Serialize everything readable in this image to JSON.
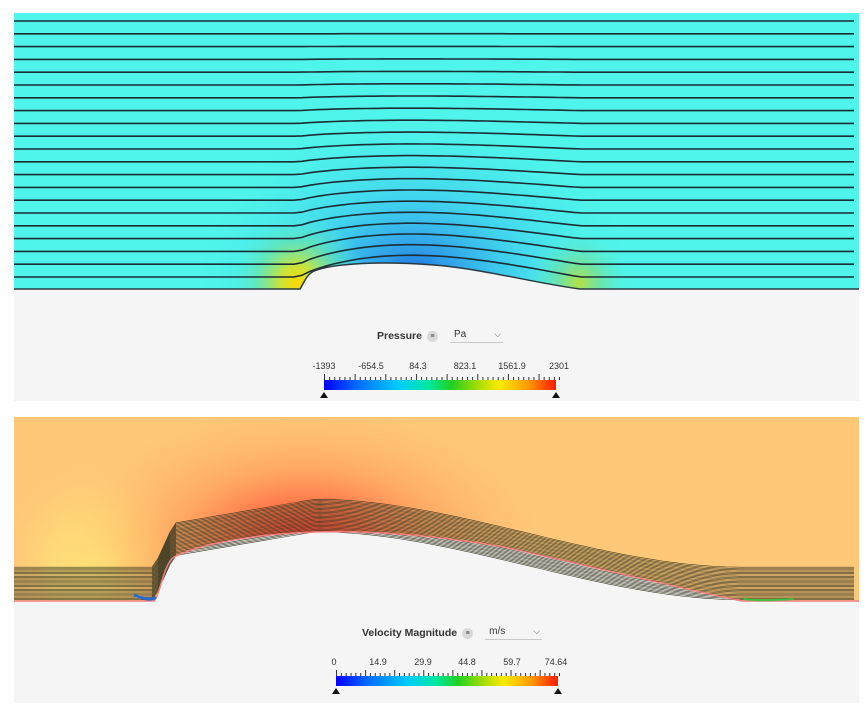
{
  "pressure_view": {
    "field_name": "Pressure",
    "info_icon": "info-icon",
    "unit": "Pa",
    "dropdown_icon": "chevron-down-icon",
    "ticks": [
      "-1393",
      "-654.5",
      "84.3",
      "823.1",
      "1561.9",
      "2301"
    ]
  },
  "velocity_view": {
    "field_name": "Velocity Magnitude",
    "info_icon": "info-icon",
    "unit": "m/s",
    "dropdown_icon": "chevron-down-icon",
    "ticks": [
      "0",
      "14.9",
      "29.9",
      "44.8",
      "59.7",
      "74.64"
    ]
  },
  "colors": {
    "pressure_field": "#4ff5ea",
    "velocity_field": "#ffc878",
    "streamline": "#1b2d35",
    "background": "#f5f5f5"
  }
}
